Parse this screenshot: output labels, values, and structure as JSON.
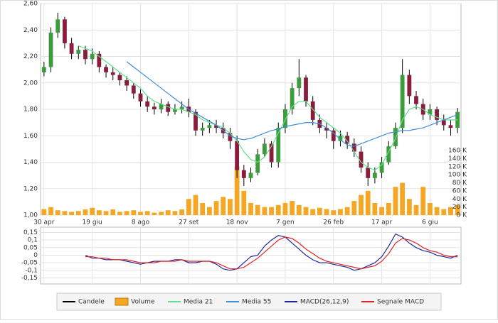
{
  "chart_data": [
    {
      "type": "candlestick",
      "categories": [
        "30 apr",
        null,
        null,
        null,
        null,
        null,
        null,
        "19 giu",
        null,
        null,
        null,
        null,
        null,
        null,
        "8 ago",
        null,
        null,
        null,
        null,
        null,
        null,
        "27 set",
        null,
        null,
        null,
        null,
        null,
        null,
        "18 nov",
        null,
        null,
        null,
        null,
        null,
        null,
        "7 gen",
        null,
        null,
        null,
        null,
        null,
        null,
        "26 feb",
        null,
        null,
        null,
        null,
        null,
        null,
        "17 apr",
        null,
        null,
        null,
        null,
        null,
        null,
        "6 giu",
        null,
        null,
        null,
        null
      ],
      "ylim": [
        1.0,
        2.6
      ],
      "yticks": [
        {
          "value": 1.0,
          "label": "1,00"
        },
        {
          "value": 1.2,
          "label": "1,20"
        },
        {
          "value": 1.4,
          "label": "1,40"
        },
        {
          "value": 1.6,
          "label": "1,60"
        },
        {
          "value": 1.8,
          "label": "1,80"
        },
        {
          "value": 2.0,
          "label": "2,00"
        },
        {
          "value": 2.2,
          "label": "2,20"
        },
        {
          "value": 2.4,
          "label": "2,40"
        },
        {
          "value": 2.6,
          "label": "2,60"
        }
      ],
      "grid": true,
      "candles": {
        "name": "Candele",
        "color": "#000000",
        "up_color": "#3c9c3c",
        "down_color": "#8a1c3c",
        "open": [
          2.08,
          2.12,
          2.38,
          2.48,
          2.3,
          2.22,
          2.25,
          2.18,
          2.22,
          2.12,
          2.08,
          2.06,
          2.02,
          1.98,
          1.92,
          1.86,
          1.82,
          1.8,
          1.84,
          1.78,
          1.8,
          1.82,
          1.78,
          1.64,
          1.66,
          1.68,
          1.66,
          1.62,
          1.56,
          1.34,
          1.28,
          1.32,
          1.46,
          1.54,
          1.4,
          1.66,
          1.8,
          1.96,
          2.04,
          1.86,
          1.72,
          1.66,
          1.64,
          1.56,
          1.6,
          1.54,
          1.48,
          1.36,
          1.28,
          1.32,
          1.4,
          1.52,
          1.66,
          2.06,
          1.9,
          1.84,
          1.76,
          1.8,
          1.72,
          1.68,
          1.66
        ],
        "high": [
          2.16,
          2.42,
          2.53,
          2.5,
          2.34,
          2.28,
          2.28,
          2.26,
          2.24,
          2.14,
          2.12,
          2.08,
          2.05,
          2.0,
          1.95,
          1.9,
          1.85,
          1.88,
          1.86,
          1.84,
          1.86,
          1.88,
          1.8,
          1.7,
          1.72,
          1.72,
          1.7,
          1.66,
          1.6,
          1.38,
          1.36,
          1.5,
          1.58,
          1.56,
          1.7,
          1.84,
          2.0,
          2.18,
          2.06,
          1.9,
          1.76,
          1.7,
          1.66,
          1.64,
          1.63,
          1.58,
          1.52,
          1.4,
          1.36,
          1.44,
          1.56,
          1.7,
          2.18,
          2.1,
          1.94,
          1.88,
          1.84,
          1.82,
          1.76,
          1.72,
          1.81
        ],
        "low": [
          2.05,
          2.08,
          2.34,
          2.26,
          2.18,
          2.18,
          2.14,
          2.14,
          2.08,
          2.04,
          2.02,
          1.98,
          1.94,
          1.88,
          1.82,
          1.78,
          1.76,
          1.77,
          1.75,
          1.76,
          1.77,
          1.74,
          1.6,
          1.6,
          1.62,
          1.62,
          1.58,
          1.5,
          1.28,
          1.22,
          1.25,
          1.3,
          1.44,
          1.36,
          1.36,
          1.62,
          1.76,
          1.9,
          1.82,
          1.68,
          1.62,
          1.58,
          1.5,
          1.52,
          1.5,
          1.44,
          1.32,
          1.22,
          1.24,
          1.28,
          1.38,
          1.5,
          1.62,
          1.84,
          1.8,
          1.72,
          1.72,
          1.68,
          1.64,
          1.6,
          1.62
        ],
        "close": [
          2.12,
          2.38,
          2.48,
          2.3,
          2.22,
          2.25,
          2.18,
          2.22,
          2.12,
          2.08,
          2.06,
          2.02,
          1.98,
          1.92,
          1.86,
          1.82,
          1.8,
          1.84,
          1.78,
          1.8,
          1.82,
          1.78,
          1.64,
          1.66,
          1.68,
          1.66,
          1.62,
          1.56,
          1.34,
          1.28,
          1.32,
          1.46,
          1.54,
          1.4,
          1.66,
          1.8,
          1.96,
          2.04,
          1.86,
          1.72,
          1.66,
          1.64,
          1.56,
          1.6,
          1.54,
          1.48,
          1.36,
          1.28,
          1.32,
          1.4,
          1.52,
          1.66,
          2.06,
          1.9,
          1.84,
          1.76,
          1.8,
          1.72,
          1.68,
          1.66,
          1.78
        ]
      },
      "volume": {
        "name": "Volume",
        "color": "#f5a623",
        "axis": "y2",
        "values": [
          15,
          20,
          12,
          10,
          8,
          10,
          14,
          18,
          12,
          10,
          14,
          8,
          10,
          12,
          8,
          10,
          6,
          8,
          12,
          10,
          14,
          40,
          50,
          30,
          20,
          35,
          45,
          40,
          120,
          60,
          30,
          25,
          20,
          20,
          25,
          30,
          35,
          25,
          20,
          15,
          18,
          15,
          12,
          15,
          20,
          35,
          50,
          60,
          30,
          20,
          30,
          70,
          80,
          40,
          25,
          70,
          30,
          20,
          15,
          20,
          25
        ]
      },
      "y2lim": [
        0,
        524
      ],
      "y2ticks": [
        {
          "value": 0,
          "label": "0 K"
        },
        {
          "value": 20,
          "label": "20 K"
        },
        {
          "value": 40,
          "label": "40 K"
        },
        {
          "value": 60,
          "label": "60 K"
        },
        {
          "value": 80,
          "label": "80 K"
        },
        {
          "value": 100,
          "label": "100 K"
        },
        {
          "value": 120,
          "label": "120 K"
        },
        {
          "value": 140,
          "label": "140 K"
        },
        {
          "value": 160,
          "label": "160 K"
        }
      ],
      "series": [
        {
          "name": "Media 21",
          "color": "#5fe08a",
          "values": [
            null,
            null,
            null,
            null,
            null,
            2.28,
            2.26,
            2.24,
            2.2,
            2.16,
            2.12,
            2.08,
            2.04,
            2.0,
            1.96,
            1.9,
            1.86,
            1.84,
            1.82,
            1.8,
            1.8,
            1.78,
            1.76,
            1.72,
            1.7,
            1.68,
            1.66,
            1.62,
            1.56,
            1.48,
            1.42,
            1.4,
            1.44,
            1.52,
            1.62,
            1.72,
            1.82,
            1.86,
            1.86,
            1.8,
            1.74,
            1.7,
            1.66,
            1.62,
            1.56,
            1.48,
            1.4,
            1.36,
            1.34,
            1.38,
            1.48,
            1.58,
            1.72,
            1.8,
            1.82,
            1.8,
            1.76,
            1.74,
            1.72,
            1.72,
            1.72
          ]
        },
        {
          "name": "Media 55",
          "color": "#3d8fd9",
          "values": [
            null,
            null,
            null,
            null,
            null,
            null,
            null,
            null,
            null,
            null,
            null,
            null,
            2.16,
            2.12,
            2.08,
            2.04,
            2.0,
            1.96,
            1.92,
            1.88,
            1.84,
            1.8,
            1.77,
            1.74,
            1.71,
            1.68,
            1.64,
            1.6,
            1.58,
            1.57,
            1.58,
            1.6,
            1.62,
            1.64,
            1.65,
            1.67,
            1.68,
            1.69,
            1.7,
            1.7,
            1.69,
            1.66,
            1.62,
            1.57,
            1.53,
            1.52,
            1.54,
            1.56,
            1.58,
            1.6,
            1.62,
            1.63,
            1.64,
            1.64,
            1.65,
            1.66,
            1.68,
            1.7,
            1.72,
            1.74,
            1.76
          ]
        }
      ]
    },
    {
      "type": "line",
      "ylim": [
        -0.19,
        0.185
      ],
      "yticks": [
        {
          "value": -0.15,
          "label": "-0,15"
        },
        {
          "value": -0.1,
          "label": "-0,1"
        },
        {
          "value": -0.05,
          "label": "-0,05"
        },
        0,
        {
          "value": 0.05,
          "label": "0,05"
        },
        {
          "value": 0.1,
          "label": "0,1"
        },
        {
          "value": 0.15,
          "label": "0,15"
        }
      ],
      "grid": true,
      "series": [
        {
          "name": "MACD(26,12,9)",
          "color": "#1b2a9c",
          "values": [
            null,
            null,
            null,
            null,
            null,
            null,
            0.0,
            -0.02,
            -0.02,
            -0.03,
            -0.03,
            -0.03,
            -0.04,
            -0.05,
            -0.06,
            -0.05,
            -0.04,
            -0.04,
            -0.04,
            -0.03,
            -0.03,
            -0.05,
            -0.05,
            -0.04,
            -0.04,
            -0.06,
            -0.09,
            -0.1,
            -0.09,
            -0.05,
            -0.01,
            0.0,
            0.06,
            0.1,
            0.13,
            0.12,
            0.08,
            0.04,
            0.0,
            -0.03,
            -0.05,
            -0.05,
            -0.06,
            -0.07,
            -0.08,
            -0.1,
            -0.09,
            -0.07,
            -0.05,
            -0.01,
            0.06,
            0.14,
            0.12,
            0.08,
            0.05,
            0.03,
            0.02,
            0.0,
            -0.01,
            -0.02,
            0.0
          ]
        },
        {
          "name": "Segnale MACD",
          "color": "#e02424",
          "values": [
            null,
            null,
            null,
            null,
            null,
            null,
            -0.01,
            -0.01,
            -0.02,
            -0.02,
            -0.03,
            -0.03,
            -0.03,
            -0.04,
            -0.05,
            -0.05,
            -0.05,
            -0.04,
            -0.04,
            -0.04,
            -0.03,
            -0.04,
            -0.04,
            -0.04,
            -0.04,
            -0.05,
            -0.07,
            -0.09,
            -0.09,
            -0.08,
            -0.05,
            -0.02,
            0.02,
            0.06,
            0.1,
            0.12,
            0.11,
            0.08,
            0.04,
            0.01,
            -0.02,
            -0.04,
            -0.05,
            -0.06,
            -0.07,
            -0.08,
            -0.09,
            -0.08,
            -0.07,
            -0.04,
            0.01,
            0.08,
            0.11,
            0.1,
            0.08,
            0.05,
            0.03,
            0.02,
            0.0,
            -0.01,
            -0.01
          ]
        }
      ]
    }
  ]
}
